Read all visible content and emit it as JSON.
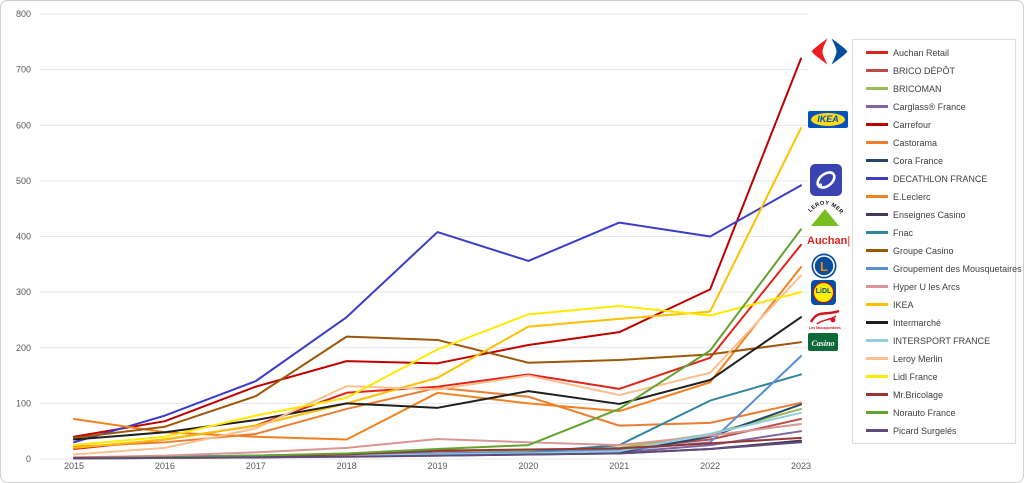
{
  "chart_data": {
    "type": "line",
    "title": "",
    "xlabel": "",
    "ylabel": "",
    "x": [
      "2015",
      "2016",
      "2017",
      "2018",
      "2019",
      "2020",
      "2021",
      "2022",
      "2023"
    ],
    "ylim": [
      0,
      800
    ],
    "yticks": [
      0,
      100,
      200,
      300,
      400,
      500,
      600,
      700,
      800
    ],
    "grid": true,
    "legend_position": "right",
    "series": [
      {
        "name": "Auchan Retail",
        "color": "#E2231A",
        "values": [
          18,
          35,
          60,
          119,
          130,
          152,
          126,
          182,
          385
        ]
      },
      {
        "name": "BRICO DÉPÔT",
        "color": "#BE4B48",
        "values": [
          2,
          4,
          6,
          9,
          14,
          16,
          18,
          35,
          72
        ]
      },
      {
        "name": "BRICOMAN",
        "color": "#9BBB59",
        "values": [
          1,
          3,
          6,
          10,
          16,
          14,
          20,
          45,
          90
        ]
      },
      {
        "name": "Carglass® France",
        "color": "#8064A2",
        "values": [
          1,
          2,
          4,
          6,
          8,
          10,
          12,
          25,
          50
        ]
      },
      {
        "name": "Carrefour",
        "color": "#C00000",
        "values": [
          40,
          68,
          130,
          176,
          172,
          205,
          228,
          305,
          720
        ]
      },
      {
        "name": "Castorama",
        "color": "#ED7D31",
        "values": [
          22,
          30,
          45,
          90,
          128,
          112,
          60,
          65,
          101
        ]
      },
      {
        "name": "Cora France",
        "color": "#24476A",
        "values": [
          2,
          3,
          5,
          6,
          8,
          10,
          12,
          40,
          98
        ]
      },
      {
        "name": "DECATHLON FRANCE",
        "color": "#3C3CC8",
        "values": [
          30,
          78,
          140,
          255,
          408,
          356,
          425,
          400,
          492
        ]
      },
      {
        "name": "E.Leclerc",
        "color": "#F4811F",
        "values": [
          72,
          48,
          40,
          35,
          119,
          100,
          86,
          138,
          345
        ]
      },
      {
        "name": "Enseignes Casino",
        "color": "#45365A",
        "values": [
          1,
          2,
          3,
          5,
          6,
          8,
          10,
          18,
          33
        ]
      },
      {
        "name": "Fnac",
        "color": "#31859C",
        "values": [
          2,
          4,
          6,
          8,
          10,
          12,
          25,
          105,
          152
        ]
      },
      {
        "name": "Groupe Casino",
        "color": "#9C5708",
        "values": [
          38,
          58,
          113,
          220,
          214,
          173,
          178,
          188,
          210
        ]
      },
      {
        "name": "Groupement des Mousquetaires",
        "color": "#558ED5",
        "values": [
          2,
          4,
          6,
          8,
          10,
          12,
          16,
          30,
          185
        ]
      },
      {
        "name": "Hyper U les Arcs",
        "color": "#D99694",
        "values": [
          3,
          6,
          12,
          20,
          36,
          30,
          25,
          42,
          63
        ]
      },
      {
        "name": "IKEA",
        "color": "#FFC000",
        "values": [
          20,
          35,
          60,
          100,
          146,
          238,
          252,
          265,
          595
        ]
      },
      {
        "name": "Intermarché",
        "color": "#1F1F1F",
        "values": [
          35,
          48,
          70,
          100,
          92,
          122,
          99,
          142,
          255
        ]
      },
      {
        "name": "INTERSPORT FRANCE",
        "color": "#92CDDC",
        "values": [
          1,
          2,
          4,
          6,
          8,
          10,
          14,
          45,
          83
        ]
      },
      {
        "name": "Leroy Merlin",
        "color": "#FAC090",
        "values": [
          8,
          20,
          55,
          131,
          125,
          150,
          115,
          155,
          330
        ]
      },
      {
        "name": "Lidl France",
        "color": "#FFE900",
        "values": [
          25,
          40,
          78,
          110,
          197,
          260,
          275,
          258,
          300
        ]
      },
      {
        "name": "Mr.Bricolage",
        "color": "#953735",
        "values": [
          2,
          3,
          5,
          8,
          15,
          17,
          19,
          28,
          38
        ]
      },
      {
        "name": "Norauto France",
        "color": "#62A331",
        "values": [
          1,
          3,
          6,
          10,
          18,
          25,
          90,
          195,
          413
        ]
      },
      {
        "name": "Picard Surgelés",
        "color": "#604A7B",
        "values": [
          1,
          2,
          3,
          4,
          6,
          8,
          10,
          18,
          30
        ]
      }
    ]
  },
  "logos": {
    "carrefour": {
      "name": "Carrefour"
    },
    "ikea": {
      "name": "IKEA",
      "text": "IKEA"
    },
    "decathlon": {
      "name": "Decathlon"
    },
    "leroy_merlin": {
      "name": "Leroy Merlin",
      "text": "LEROY MERLIN"
    },
    "auchan": {
      "name": "Auchan",
      "text": "Auchan",
      "bar": "|"
    },
    "leclerc": {
      "name": "E.Leclerc",
      "text": "L"
    },
    "lidl": {
      "name": "Lidl",
      "text": "LiDL"
    },
    "mousquetaires": {
      "name": "Les Mousquetaires",
      "text": "Les Mousquetaires"
    },
    "casino": {
      "name": "Casino",
      "text": "Casino"
    }
  }
}
